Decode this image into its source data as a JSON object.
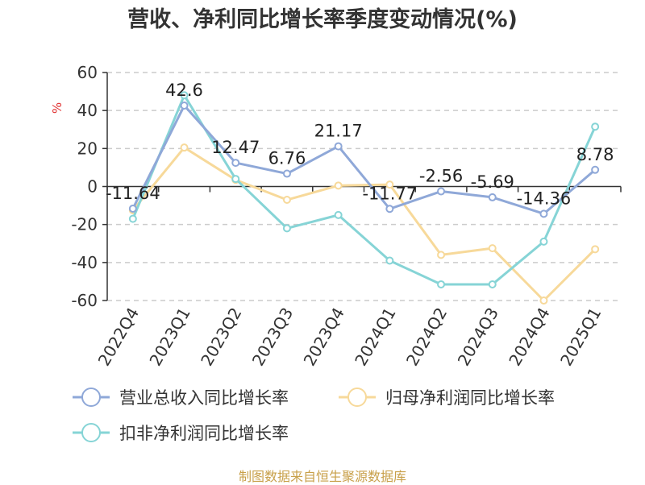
{
  "chart_data": {
    "type": "line",
    "title": "营收、净利同比增长率季度变动情况(%)",
    "ylabel": "%",
    "xlabel": "",
    "ylim": [
      -60,
      60
    ],
    "yticks": [
      -60,
      -40,
      -20,
      0,
      20,
      40,
      60
    ],
    "grid": true,
    "legend_position": "bottom-left",
    "categories": [
      "2022Q4",
      "2023Q1",
      "2023Q2",
      "2023Q3",
      "2023Q4",
      "2024Q1",
      "2024Q2",
      "2024Q3",
      "2024Q4",
      "2025Q1"
    ],
    "series": [
      {
        "name": "营业总收入同比增长率",
        "color": "#8fa8d8",
        "values": [
          -11.64,
          42.6,
          12.47,
          6.76,
          21.17,
          -11.77,
          -2.56,
          -5.69,
          -14.36,
          8.78
        ],
        "labels": [
          "-11.64",
          "42.6",
          "12.47",
          "6.76",
          "21.17",
          "-11.77",
          "-2.56",
          "-5.69",
          "-14.36",
          "8.78"
        ]
      },
      {
        "name": "归母净利润同比增长率",
        "color": "#f7d99a",
        "values": [
          -12.5,
          20.5,
          3.5,
          -7,
          0.5,
          1,
          -36,
          -32.5,
          -60,
          -33
        ],
        "labels": []
      },
      {
        "name": "扣非净利润同比增长率",
        "color": "#86d4d6",
        "values": [
          -17,
          48,
          4,
          -22,
          -15,
          -39,
          -51.5,
          -51.5,
          -29,
          31.5
        ],
        "labels": []
      }
    ]
  },
  "footer": {
    "source": "制图数据来自恒生聚源数据库",
    "source_color": "#c8a04a"
  },
  "colors": {
    "axis": "#333333",
    "grid": "#cccccc",
    "ylabel": "#e03030"
  }
}
